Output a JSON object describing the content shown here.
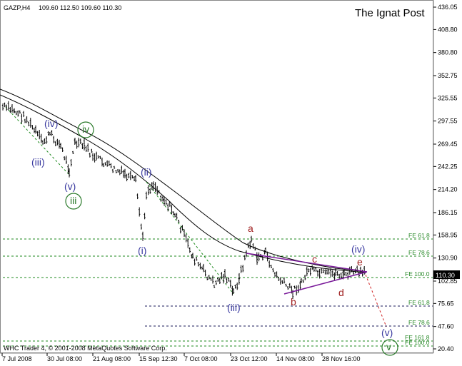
{
  "header": {
    "symbol": "GAZP,H4",
    "ohlc": "109.60 112.50 109.60 110.30",
    "brand": "The Ignat Post",
    "copyright": "WHC Trader 4, © 2001-2008 MetaQuotes Software Corp."
  },
  "price_axis": {
    "ticks": [
      "436.05",
      "408.80",
      "380.80",
      "352.75",
      "325.55",
      "297.55",
      "269.45",
      "242.25",
      "214.20",
      "186.15",
      "158.95",
      "130.90",
      "102.85",
      "75.65",
      "47.60",
      "20.40"
    ],
    "current_price": "110.30"
  },
  "time_axis": {
    "ticks": [
      "7 Jul 2008",
      "30 Jul 08:00",
      "21 Aug 08:00",
      "15 Sep 12:30",
      "7 Oct 08:00",
      "23 Oct 12:00",
      "14 Nov 08:00",
      "28 Nov 16:00"
    ]
  },
  "fib_levels": [
    {
      "label": "FE 61.8",
      "value": 153
    },
    {
      "label": "FE 78.6",
      "value": 130
    },
    {
      "label": "FE 100.0",
      "value": 106
    },
    {
      "label": "FE 61.8",
      "value": 73
    },
    {
      "label": "FE 78.6",
      "value": 45
    },
    {
      "label": "FE 161.8",
      "value": 27
    },
    {
      "label": "FE 100.0",
      "value": 20
    }
  ],
  "wave_labels": [
    {
      "text": "(iii)",
      "color": "#3a3aa0",
      "circled": false
    },
    {
      "text": "(iv)",
      "color": "#3a3aa0",
      "circled": false
    },
    {
      "text": "(v)",
      "color": "#3a3aa0",
      "circled": false
    },
    {
      "text": "iii",
      "color": "#2a7a2a",
      "circled": true
    },
    {
      "text": "iv",
      "color": "#2a7a2a",
      "circled": true
    },
    {
      "text": "(ii)",
      "color": "#3a3aa0",
      "circled": false
    },
    {
      "text": "(i)",
      "color": "#3a3aa0",
      "circled": false
    },
    {
      "text": "(iii)",
      "color": "#3a3aa0",
      "circled": false
    },
    {
      "text": "a",
      "color": "#a02020",
      "circled": false
    },
    {
      "text": "b",
      "color": "#a02020",
      "circled": false
    },
    {
      "text": "c",
      "color": "#a02020",
      "circled": false
    },
    {
      "text": "d",
      "color": "#a02020",
      "circled": false
    },
    {
      "text": "e",
      "color": "#a02020",
      "circled": false
    },
    {
      "text": "(iv)",
      "color": "#3a3aa0",
      "circled": false
    },
    {
      "text": "(v)",
      "color": "#3a3aa0",
      "circled": false
    },
    {
      "text": "v",
      "color": "#2a7a2a",
      "circled": true
    }
  ],
  "colors": {
    "background": "#ffffff",
    "price_bar": "#000000",
    "fib_line": "#1e8a1e",
    "triangle": "#7a1a9a",
    "ma": "#000000",
    "projection": "#d02020",
    "price_tag_bg": "#000000"
  }
}
